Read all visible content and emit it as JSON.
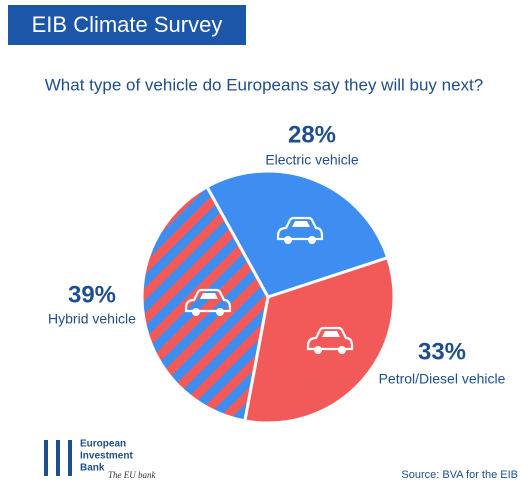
{
  "chart_data": {
    "type": "pie",
    "title": "EIB Climate Survey",
    "subtitle": "What type of vehicle do Europeans say they will buy next?",
    "categories": [
      "Electric vehicle",
      "Petrol/Diesel vehicle",
      "Hybrid vehicle"
    ],
    "values": [
      28,
      33,
      39
    ],
    "value_labels": [
      "28%",
      "33%",
      "39%"
    ],
    "colors": [
      "#3d8ef0",
      "#f25a5a",
      [
        "#f25a5a",
        "#3d8ef0"
      ]
    ],
    "logo": [
      "European",
      "Investment",
      "Bank"
    ],
    "tagline": "The EU bank",
    "source": "Source: BVA for the EIB"
  }
}
